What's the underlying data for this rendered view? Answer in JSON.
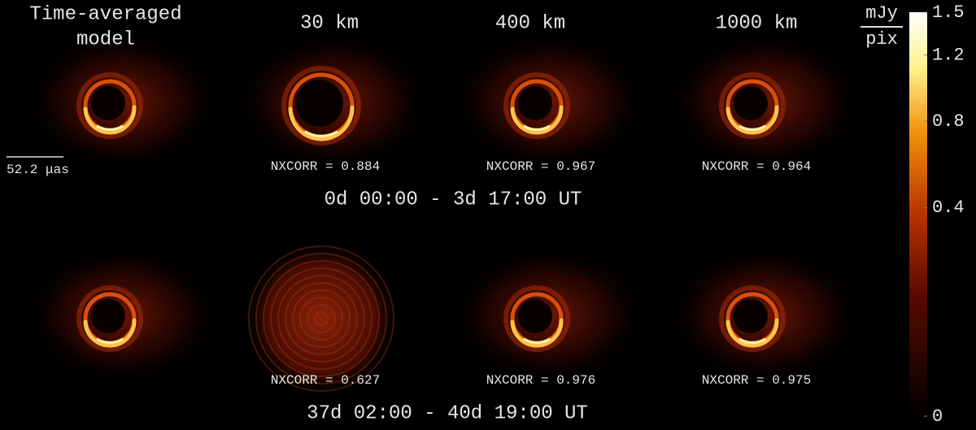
{
  "header": {
    "model_label": [
      "Time-averaged",
      "model"
    ],
    "columns": [
      "30 km",
      "400 km",
      "1000 km"
    ]
  },
  "rows": [
    {
      "time": "0d 00:00 - 3d 17:00 UT",
      "nxcorr": [
        "NXCORR = 0.884",
        "NXCORR = 0.967",
        "NXCORR = 0.964"
      ]
    },
    {
      "time": "37d 02:00 - 40d 19:00 UT",
      "nxcorr": [
        "NXCORR = 0.627",
        "NXCORR = 0.976",
        "NXCORR = 0.975"
      ]
    }
  ],
  "scale_bar": "52.2 μas",
  "colorbar": {
    "unit": [
      "mJy",
      "pix"
    ],
    "scale": "sqrt",
    "lim": [
      0,
      1.5
    ],
    "ticks": [
      0,
      0.4,
      0.8,
      1.2,
      1.5
    ]
  }
}
